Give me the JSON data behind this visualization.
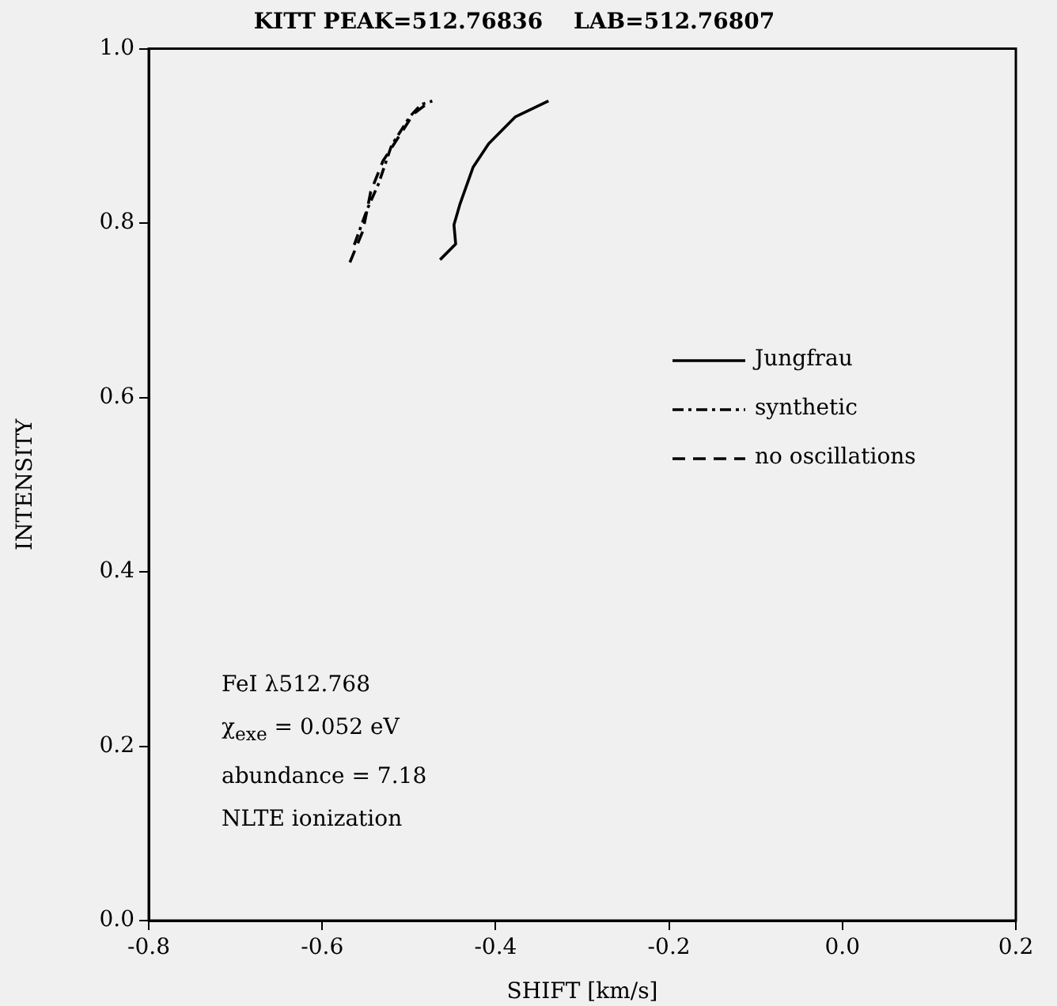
{
  "chart_data": {
    "type": "line",
    "title": "KITT PEAK=512.76836    LAB=512.76807",
    "xlabel": "SHIFT [km/s]",
    "ylabel": "INTENSITY",
    "xlim": [
      -0.8,
      0.2
    ],
    "xticks": [
      {
        "value": -0.8,
        "label": "-0.8"
      },
      {
        "value": -0.6,
        "label": "-0.6"
      },
      {
        "value": -0.4,
        "label": "-0.4"
      },
      {
        "value": -0.2,
        "label": "-0.2"
      },
      {
        "value": 0,
        "label": "0.0"
      },
      {
        "value": 0.2,
        "label": "0.2"
      }
    ],
    "ylim": [
      0,
      1
    ],
    "yticks": [
      {
        "value": 0,
        "label": "0.0"
      },
      {
        "value": 0.2,
        "label": "0.2"
      },
      {
        "value": 0.4,
        "label": "0.4"
      },
      {
        "value": 0.6,
        "label": "0.6"
      },
      {
        "value": 0.8,
        "label": "0.8"
      },
      {
        "value": 1,
        "label": "1.0"
      }
    ],
    "grid": false,
    "legend": "right",
    "marker": "none",
    "series": [
      {
        "name": "Jungfrau",
        "color": "#000000",
        "line_style": "solid",
        "x": [
          -0.464,
          -0.446,
          -0.448,
          -0.441,
          -0.426,
          -0.408,
          -0.377,
          -0.339
        ],
        "values": [
          0.758,
          0.776,
          0.798,
          0.822,
          0.864,
          0.891,
          0.922,
          0.94
        ]
      },
      {
        "name": "synthetic",
        "color": "#000000",
        "line_style": "dashdot",
        "x": [
          -0.563,
          -0.548,
          -0.535,
          -0.52,
          -0.499,
          -0.486,
          -0.473
        ],
        "values": [
          0.775,
          0.816,
          0.845,
          0.889,
          0.922,
          0.936,
          0.94
        ]
      },
      {
        "name": "no oscillations",
        "color": "#000000",
        "line_style": "dashed",
        "x": [
          -0.568,
          -0.553,
          -0.544,
          -0.53,
          -0.511,
          -0.495,
          -0.475
        ],
        "values": [
          0.755,
          0.791,
          0.836,
          0.871,
          0.9,
          0.925,
          0.94
        ]
      }
    ],
    "annotations": [
      "FeI  λ512.768",
      "χ$_{exe}$ = 0.052 eV",
      "abundance = 7.18",
      "NLTE ionization"
    ]
  }
}
